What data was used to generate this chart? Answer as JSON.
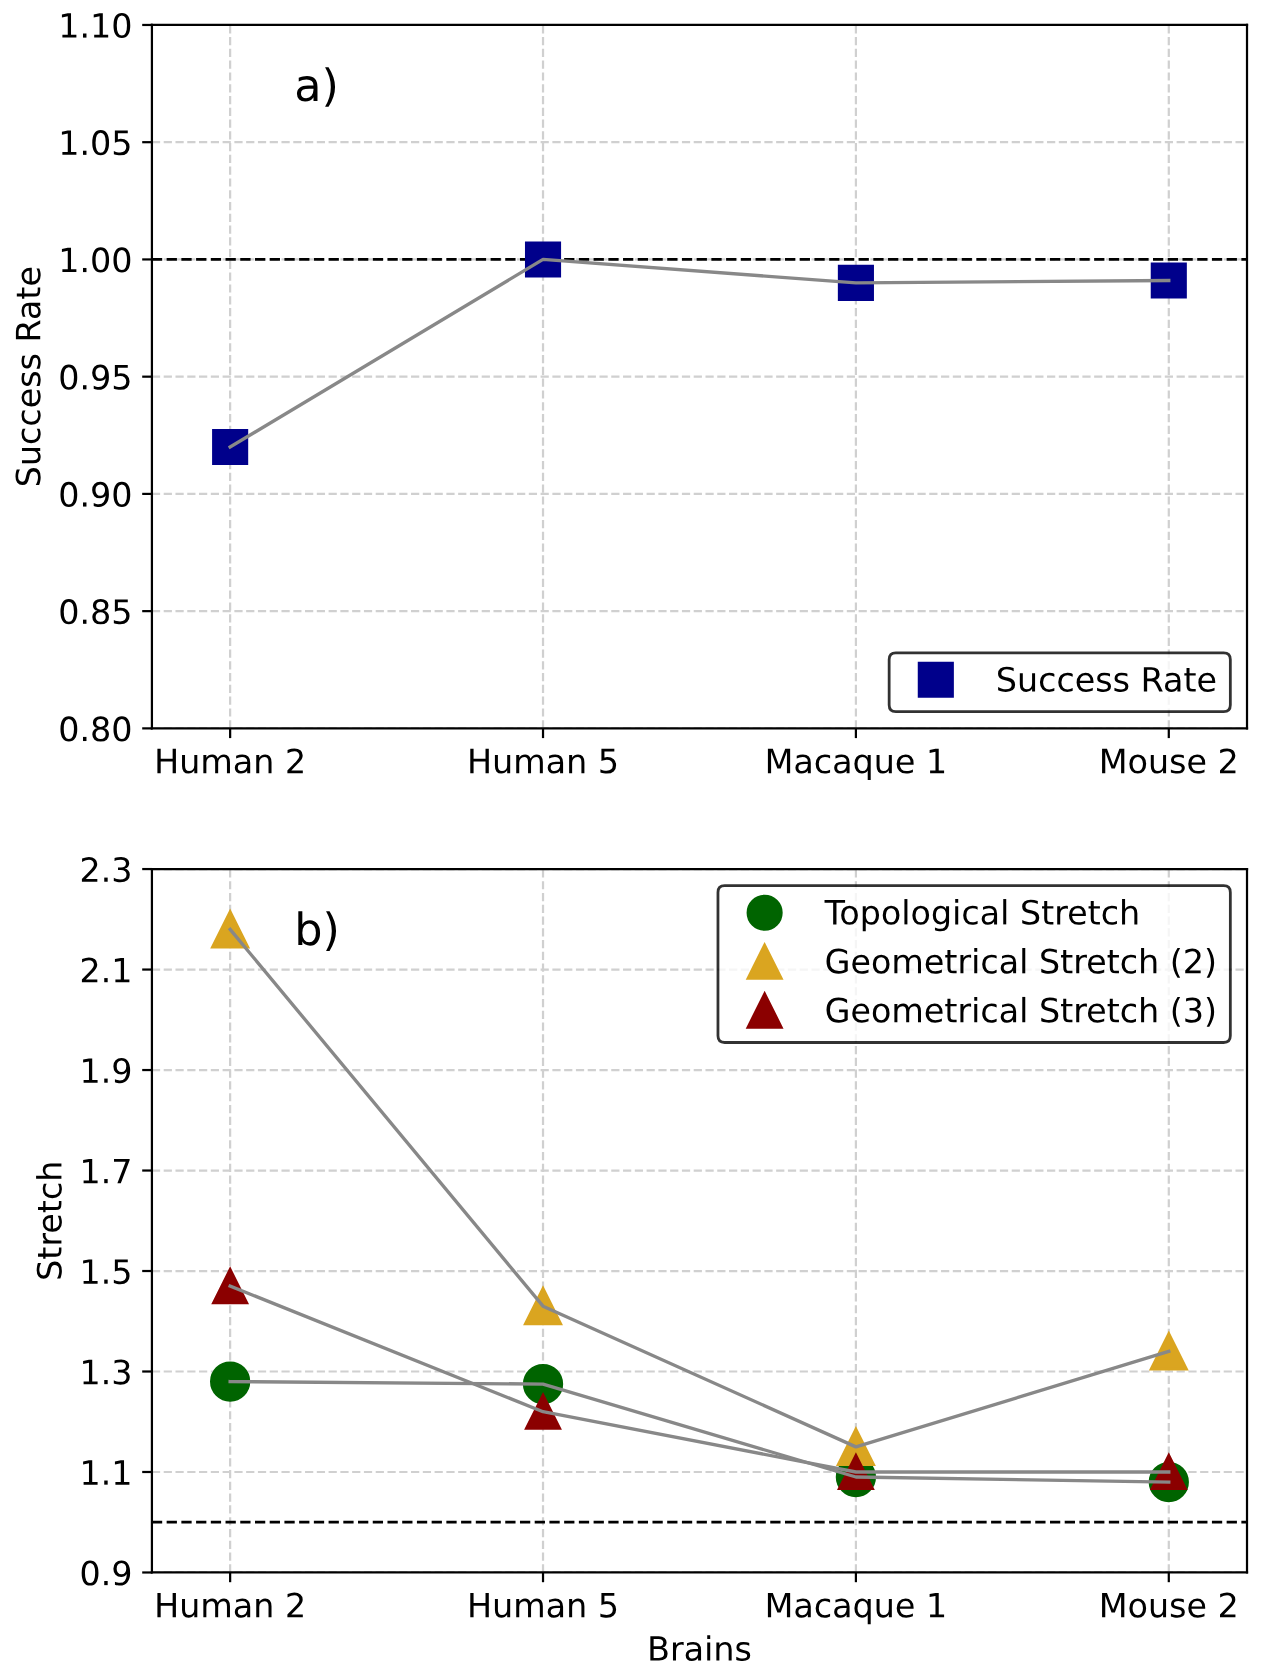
{
  "chart_data": [
    {
      "type": "line",
      "categories": [
        "Human 2",
        "Human 5",
        "Macaque 1",
        "Mouse 2"
      ],
      "ylabel": "Success Rate",
      "ylim": [
        0.8,
        1.1
      ],
      "yticks": [
        {
          "value": 0.8,
          "label": "0.80"
        },
        {
          "value": 0.85,
          "label": "0.85"
        },
        {
          "value": 0.9,
          "label": "0.90"
        },
        {
          "value": 0.95,
          "label": "0.95"
        },
        {
          "value": 1.0,
          "label": "1.00"
        },
        {
          "value": 1.05,
          "label": "1.05"
        },
        {
          "value": 1.1,
          "label": "1.10"
        }
      ],
      "grid": true,
      "legend": "bottom right",
      "annotations": [
        "a)"
      ],
      "ref_lines": [
        {
          "axis": "y",
          "value": 1.0,
          "color": "#000000",
          "line_style": "dashed"
        }
      ],
      "series": [
        {
          "name": "Success Rate",
          "color": "#00008b",
          "marker": "square",
          "values": [
            0.92,
            1.0,
            0.99,
            0.991
          ]
        }
      ]
    },
    {
      "type": "line",
      "categories": [
        "Human 2",
        "Human 5",
        "Macaque 1",
        "Mouse 2"
      ],
      "xlabel": "Brains",
      "ylabel": "Stretch",
      "ylim": [
        0.9,
        2.3
      ],
      "yticks": [
        0.9,
        1.1,
        1.3,
        1.5,
        1.7,
        1.9,
        2.1,
        2.3
      ],
      "grid": true,
      "legend": "top right",
      "annotations": [
        "b)"
      ],
      "ref_lines": [
        {
          "axis": "y",
          "value": 1.0,
          "color": "#000000",
          "line_style": "dashed"
        }
      ],
      "series": [
        {
          "name": "Topological Stretch",
          "color": "#006400",
          "marker": "circle",
          "values": [
            1.28,
            1.275,
            1.09,
            1.08
          ]
        },
        {
          "name": "Geometrical Stretch (2)",
          "color": "#daa520",
          "marker": "triangle",
          "values": [
            2.18,
            1.43,
            1.15,
            1.34
          ]
        },
        {
          "name": "Geometrical Stretch (3)",
          "color": "#8b0000",
          "marker": "triangle",
          "values": [
            1.47,
            1.22,
            1.1,
            1.1
          ]
        }
      ]
    }
  ]
}
